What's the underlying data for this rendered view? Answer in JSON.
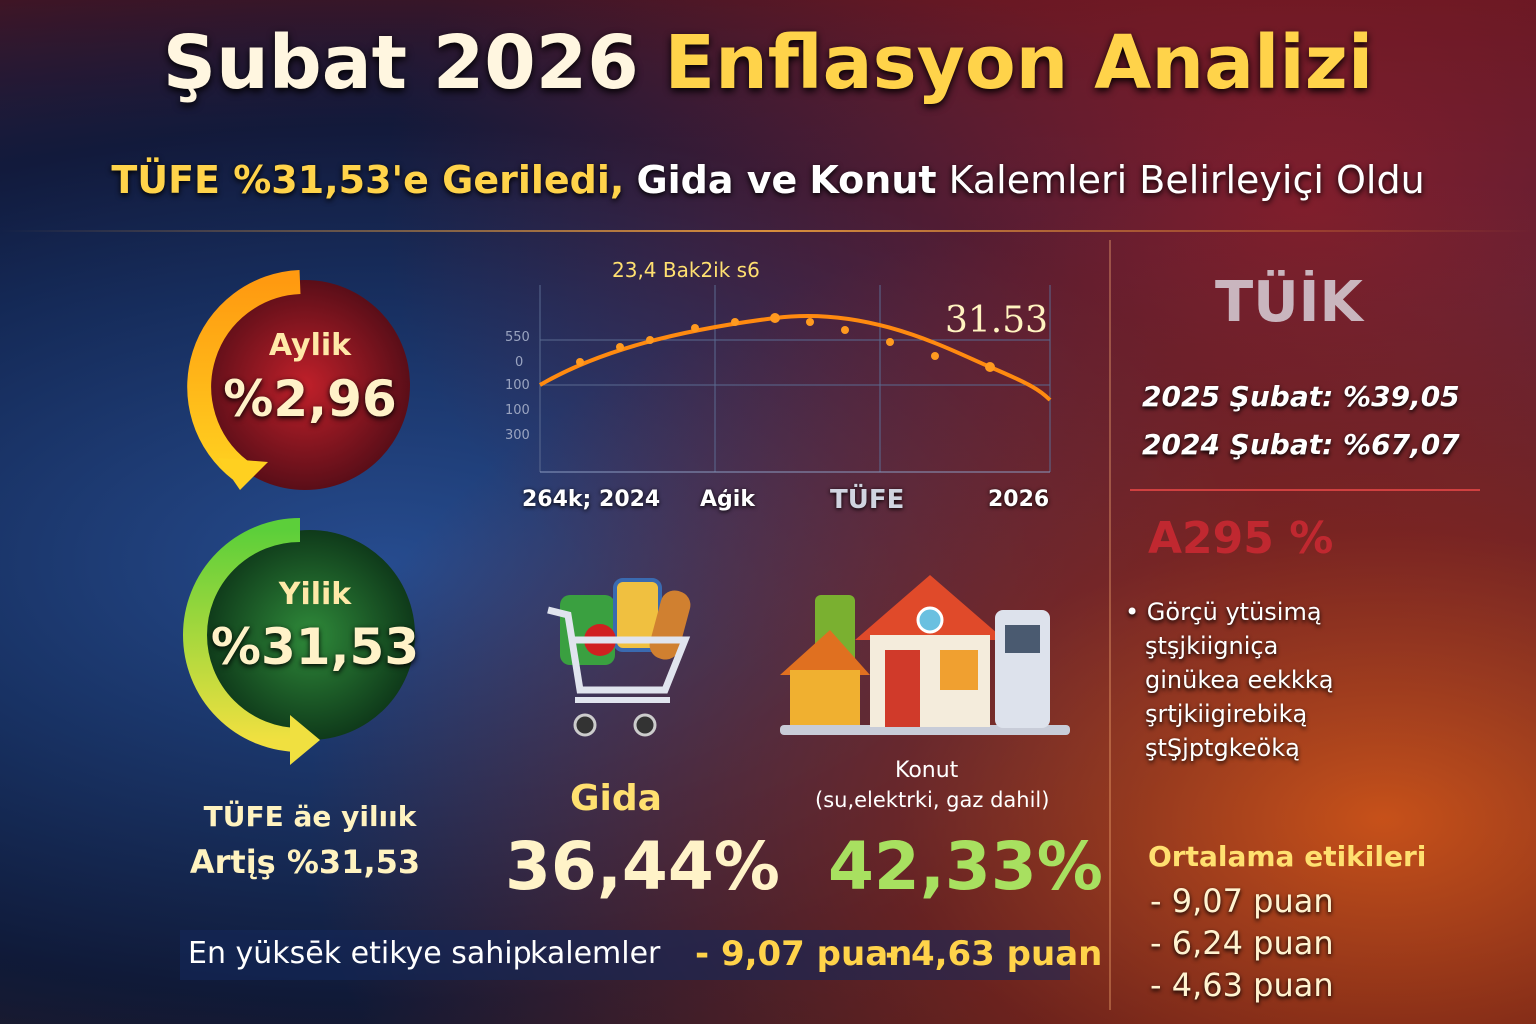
{
  "header": {
    "title": [
      "Şubat 2026",
      "Enflasyon Analizi"
    ],
    "subtitle": [
      "TÜFE %31,53'e Geriledi,",
      "Gida ve",
      "Konut",
      "Kalemleri Belirleyiçi Oldu"
    ]
  },
  "left": {
    "monthly": {
      "label": "Aylik",
      "value": "%2,96"
    },
    "yearly": {
      "label": "Yilik",
      "value": "%31,53"
    },
    "caption": [
      "TÜFE äe yilıık",
      "Artįş %31,53"
    ]
  },
  "chart": {
    "annotation": "23,4 Bak2ik s6",
    "end_label": "31.53",
    "y_labels": [
      "550",
      "0",
      "100",
      "100",
      "300"
    ],
    "x_labels": [
      "264k; 2024",
      "Aģik",
      "TÜFE",
      "2026"
    ]
  },
  "items": {
    "food": {
      "label": "Gida",
      "value": "36,44%"
    },
    "housing": {
      "label": "Konut",
      "note": "(su,elektrki, gaz dahil)",
      "value": "42,33%"
    }
  },
  "footer": [
    "En yüksēk etikye sahip",
    "kalemler",
    "- 9,07 puan",
    "- 4,63 puan"
  ],
  "right": {
    "logo": "TÜİK",
    "history": [
      "2025 Şubat: %39,05",
      "2024 Şubat: %67,07"
    ],
    "highlight": "A295 %",
    "bullets": [
      "Görçü ytüsimą",
      "ştşjkiigniça",
      "ginükea eekkką",
      "şrtjkiigirebiką",
      "ştŞjptgkeöką"
    ],
    "average": {
      "title": "Ortalama etikileri",
      "items": [
        "- 9,07 puan",
        "- 6,24 puan",
        "- 4,63 puan"
      ]
    }
  }
}
